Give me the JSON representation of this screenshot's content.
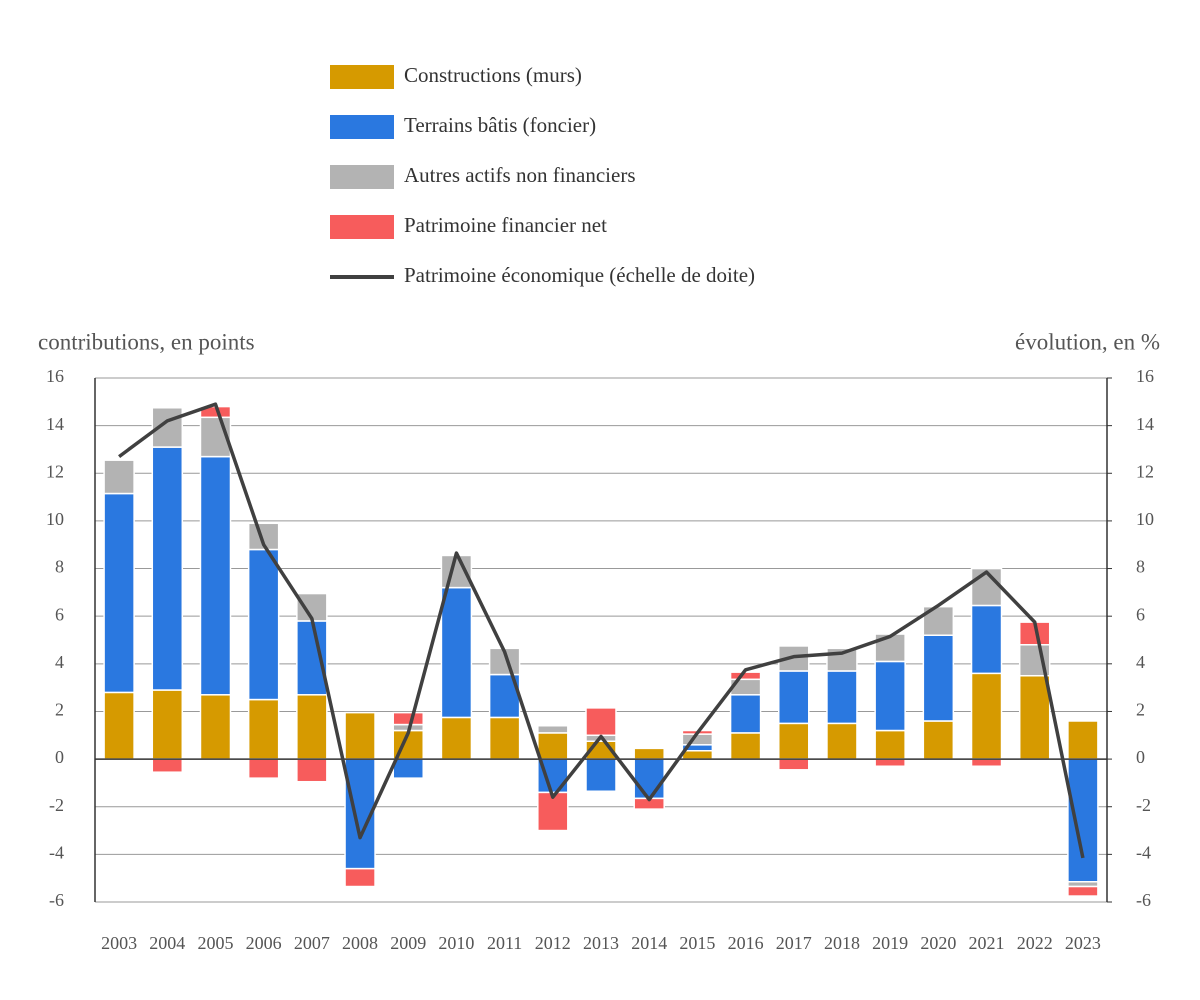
{
  "chart_data": {
    "type": "bar",
    "y_label": "contributions, en points",
    "y2_label": "évolution, en %",
    "categories": [
      "2003",
      "2004",
      "2005",
      "2006",
      "2007",
      "2008",
      "2009",
      "2010",
      "2011",
      "2012",
      "2013",
      "2014",
      "2015",
      "2016",
      "2017",
      "2018",
      "2019",
      "2020",
      "2021",
      "2022",
      "2023"
    ],
    "series": [
      {
        "name": "Constructions (murs)",
        "type": "bar",
        "color": "#d69a00",
        "values": [
          2.8,
          2.9,
          2.7,
          2.5,
          2.7,
          1.95,
          1.2,
          1.75,
          1.75,
          1.1,
          0.75,
          0.45,
          0.35,
          1.1,
          1.5,
          1.5,
          1.2,
          1.6,
          3.6,
          3.5,
          1.6
        ]
      },
      {
        "name": "Terrains bâtis (foncier)",
        "type": "bar",
        "color": "#2a78e0",
        "values": [
          8.35,
          10.2,
          10.0,
          6.3,
          3.1,
          -4.6,
          -0.8,
          5.45,
          1.8,
          -1.4,
          -1.35,
          -1.65,
          0.25,
          1.6,
          2.2,
          2.2,
          2.9,
          3.6,
          2.85,
          0,
          -5.15
        ]
      },
      {
        "name": "Autres actifs non financiers",
        "type": "bar",
        "color": "#b3b3b3",
        "values": [
          1.4,
          1.65,
          1.65,
          1.1,
          1.15,
          0,
          0.25,
          1.35,
          1.1,
          0.3,
          0.25,
          0,
          0.45,
          0.65,
          1.05,
          0.95,
          1.15,
          1.2,
          1.55,
          1.3,
          -0.2
        ]
      },
      {
        "name": "Patrimoine financier net",
        "type": "bar",
        "color": "#f75c5c",
        "values": [
          0,
          -0.55,
          0.45,
          -0.8,
          -0.95,
          -0.75,
          0.5,
          0,
          0,
          -1.6,
          1.15,
          -0.45,
          0.15,
          0.3,
          -0.45,
          0,
          -0.3,
          0,
          -0.3,
          0.95,
          -0.4
        ]
      },
      {
        "name": "Patrimoine économique (échelle de doite)",
        "type": "line",
        "axis": "y2",
        "color": "#404040",
        "values": [
          12.7,
          14.2,
          14.9,
          9.0,
          5.9,
          -3.3,
          1.1,
          8.65,
          4.5,
          -1.6,
          0.95,
          -1.7,
          1.1,
          3.75,
          4.3,
          4.45,
          5.15,
          6.45,
          7.85,
          5.75,
          -4.15
        ]
      }
    ],
    "ylim": [
      -6,
      16
    ],
    "yticks": [
      -6,
      -4,
      -2,
      0,
      2,
      4,
      6,
      8,
      10,
      12,
      14,
      16
    ],
    "y2lim": [
      -6,
      16
    ],
    "y2ticks": [
      -6,
      -4,
      -2,
      0,
      2,
      4,
      6,
      8,
      10,
      12,
      14,
      16
    ],
    "grid": true,
    "legend": "top"
  }
}
